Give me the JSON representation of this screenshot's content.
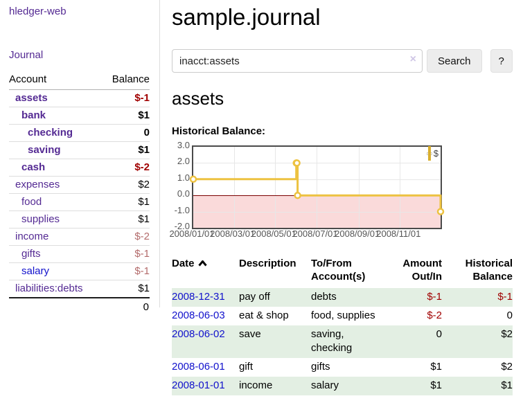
{
  "app": {
    "title": "hledger-web",
    "nav_journal": "Journal"
  },
  "sidebar": {
    "columns": {
      "account": "Account",
      "balance": "Balance"
    },
    "accounts": [
      {
        "account": "assets",
        "balance": "$-1",
        "depth": 1,
        "bold": true
      },
      {
        "account": "bank",
        "balance": "$1",
        "depth": 2,
        "bold": true
      },
      {
        "account": "checking",
        "balance": "0",
        "depth": 3,
        "bold": true
      },
      {
        "account": "saving",
        "balance": "$1",
        "depth": 3,
        "bold": true
      },
      {
        "account": "cash",
        "balance": "$-2",
        "depth": 2,
        "bold": true
      },
      {
        "account": "expenses",
        "balance": "$2",
        "depth": 1,
        "bold": false
      },
      {
        "account": "food",
        "balance": "$1",
        "depth": 2,
        "bold": false
      },
      {
        "account": "supplies",
        "balance": "$1",
        "depth": 2,
        "bold": false
      },
      {
        "account": "income",
        "balance": "$-2",
        "depth": 1,
        "bold": false
      },
      {
        "account": "gifts",
        "balance": "$-1",
        "depth": 2,
        "bold": false
      },
      {
        "account": "salary",
        "balance": "$-1",
        "depth": 2,
        "bold": false,
        "unvisited": true
      },
      {
        "account": "liabilities:debts",
        "balance": "$1",
        "depth": 1,
        "bold": false
      }
    ],
    "total": "0"
  },
  "main": {
    "title": "sample.journal",
    "search": {
      "value": "inacct:assets",
      "clear_icon": "×",
      "button_label": "Search",
      "help_label": "?"
    },
    "account_heading": "assets",
    "chart_title": "Historical Balance:",
    "register": {
      "headers": [
        {
          "label": "Date",
          "align": "left",
          "sort_icon": "chevron-up"
        },
        {
          "label": "Description",
          "align": "left"
        },
        {
          "label": "To/From Account(s)",
          "align": "left"
        },
        {
          "label": "Amount Out/In",
          "align": "right"
        },
        {
          "label": "Historical Balance",
          "align": "right"
        }
      ],
      "rows": [
        {
          "date": "2008-12-31",
          "description": "pay off",
          "accounts": "debts",
          "amount": "$-1",
          "balance": "$-1"
        },
        {
          "date": "2008-06-03",
          "description": "eat & shop",
          "accounts": "food, supplies",
          "amount": "$-2",
          "balance": "0"
        },
        {
          "date": "2008-06-02",
          "description": "save",
          "accounts": "saving, checking",
          "amount": "0",
          "balance": "$2"
        },
        {
          "date": "2008-06-01",
          "description": "gift",
          "accounts": "gifts",
          "amount": "$1",
          "balance": "$2"
        },
        {
          "date": "2008-01-01",
          "description": "income",
          "accounts": "salary",
          "amount": "$1",
          "balance": "$1"
        }
      ]
    }
  },
  "chart_data": {
    "type": "line",
    "title": "Historical Balance:",
    "style": "steps",
    "series": [
      {
        "name": "$",
        "color": "#edc240",
        "points": [
          [
            "2008-01-01",
            1
          ],
          [
            "2008-06-01",
            2
          ],
          [
            "2008-06-02",
            2
          ],
          [
            "2008-06-03",
            0
          ],
          [
            "2008-12-31",
            -1
          ]
        ]
      }
    ],
    "xlim": [
      "2008-01-01",
      "2008-12-31"
    ],
    "ylim": [
      -2,
      3
    ],
    "yticks": [
      {
        "value": 3,
        "label": "3.0"
      },
      {
        "value": 2,
        "label": "2.0"
      },
      {
        "value": 1,
        "label": "1.0"
      },
      {
        "value": 0,
        "label": "0.0"
      },
      {
        "value": -1,
        "label": "-1.0"
      },
      {
        "value": -2,
        "label": "-2.0"
      }
    ],
    "xticks": [
      {
        "date": "2008-01-01",
        "label": "2008/01/01"
      },
      {
        "date": "2008-03-01",
        "label": "2008/03/01"
      },
      {
        "date": "2008-05-01",
        "label": "2008/05/01"
      },
      {
        "date": "2008-07-01",
        "label": "2008/07/01"
      },
      {
        "date": "2008-09-01",
        "label": "2008/09/01"
      },
      {
        "date": "2008-11-01",
        "label": "2008/11/01"
      }
    ],
    "legend_position": "top-right",
    "grid": true
  },
  "colors": {
    "link_visited": "#542a93",
    "link_unvisited": "#1111cc",
    "negative_strong": "#a00000",
    "negative_muted": "#b36b6b",
    "row_stripe_green": "#e3efe3",
    "chart_gold": "#edc240",
    "chart_negative_fill": "#fadada",
    "chart_zero_line": "#7a0000"
  }
}
